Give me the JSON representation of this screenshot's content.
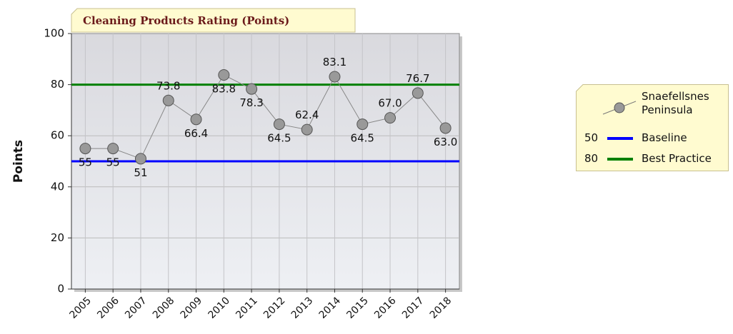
{
  "chart_data": {
    "type": "line",
    "title": "Cleaning Products Rating (Points)",
    "y_label": "Points",
    "categories": [
      "2005",
      "2006",
      "2007",
      "2008",
      "2009",
      "2010",
      "2011",
      "2012",
      "2013",
      "2014",
      "2015",
      "2016",
      "2017",
      "2018"
    ],
    "series": [
      {
        "name": "Snaefellsnes Peninsula",
        "color": "#888888",
        "values": [
          55,
          55,
          51,
          73.8,
          66.4,
          83.8,
          78.3,
          64.5,
          62.4,
          83.1,
          64.5,
          67.0,
          76.7,
          63.0
        ],
        "value_labels": [
          "55",
          "55",
          "51",
          "73.8",
          "66.4",
          "83.8",
          "78.3",
          "64.5",
          "62.4",
          "83.1",
          "64.5",
          "67.0",
          "76.7",
          "63.0"
        ]
      }
    ],
    "reference_lines": [
      {
        "name": "Baseline",
        "value": 50,
        "color": "#0000ff"
      },
      {
        "name": "Best Practice",
        "value": 80,
        "color": "#008000"
      }
    ],
    "ylim": [
      0,
      100
    ],
    "yticks": [
      0,
      20,
      40,
      60,
      80,
      100
    ],
    "grid": true
  }
}
